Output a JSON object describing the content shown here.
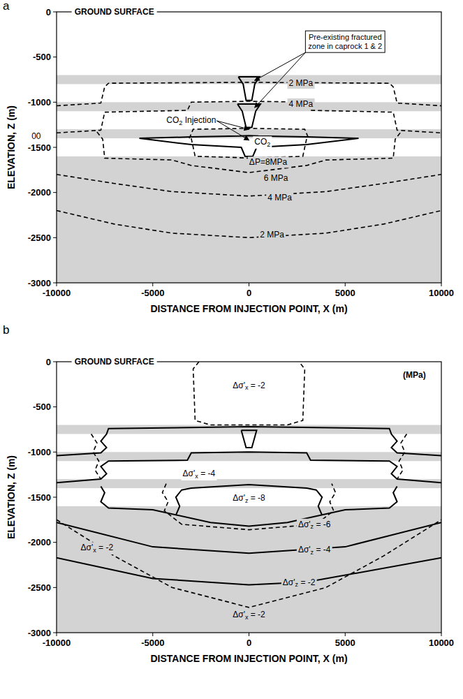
{
  "chart_data": [
    {
      "type": "contour",
      "panel": "a",
      "xlabel": "DISTANCE FROM INJECTION POINT, X (m)",
      "ylabel": "ELEVATION, Z (m)",
      "xlim": [
        -10000,
        10000
      ],
      "ylim": [
        -3000,
        0
      ],
      "xticks": [
        -10000,
        -5000,
        0,
        5000,
        10000
      ],
      "yticks": [
        -3000,
        -2500,
        -2000,
        -1500,
        -1000,
        -500,
        0
      ],
      "layers": [
        {
          "top": -700,
          "bottom": -800
        },
        {
          "top": -1000,
          "bottom": -1100
        },
        {
          "top": -1300,
          "bottom": -1400
        },
        {
          "top": -1600,
          "bottom": -3000
        }
      ],
      "contours": [
        {
          "line_style": "dashed",
          "x": [
            -10000,
            -7700,
            -7500,
            -7300,
            0,
            7300,
            7500,
            7700,
            10000
          ],
          "y": [
            -1040,
            -1010,
            -830,
            -790,
            -780,
            -790,
            -830,
            -1010,
            -1040
          ]
        },
        {
          "line_style": "dashed",
          "x": [
            -10000,
            -7700,
            -7500,
            -3200,
            -3000,
            0,
            3000,
            3200,
            7500,
            7700,
            10000
          ],
          "y": [
            -1340,
            -1310,
            -1110,
            -1090,
            -1000,
            -990,
            -1000,
            -1090,
            -1110,
            -1310,
            -1340
          ]
        },
        {
          "line_style": "dashed",
          "x": [
            -7900,
            -7600,
            -7500,
            -4000,
            -3000,
            0,
            3000,
            4000,
            7500,
            7600,
            7900
          ],
          "y": [
            -1330,
            -1410,
            -1620,
            -1640,
            -1700,
            -1780,
            -1700,
            -1640,
            -1620,
            -1410,
            -1330
          ]
        },
        {
          "line_style": "dashed",
          "x": [
            -3100,
            -2900,
            0,
            2900,
            3100
          ],
          "y": [
            -1400,
            -1300,
            -1290,
            -1300,
            -1400
          ]
        },
        {
          "line_style": "dashed",
          "x": [
            -3000,
            -2800,
            -1000,
            0,
            1000,
            2800,
            3000
          ],
          "y": [
            -1400,
            -1600,
            -1610,
            -1620,
            -1610,
            -1600,
            -1400
          ]
        },
        {
          "line_style": "dashed",
          "x": [
            -10000,
            -7000,
            -4000,
            0,
            4000,
            7000,
            10000
          ],
          "y": [
            -1800,
            -1900,
            -1990,
            -2040,
            -1990,
            -1900,
            -1800
          ]
        },
        {
          "line_style": "dashed",
          "x": [
            -10000,
            -7000,
            -4000,
            0,
            4000,
            7000,
            10000
          ],
          "y": [
            -2200,
            -2350,
            -2450,
            -2500,
            -2450,
            -2350,
            -2200
          ]
        },
        {
          "line_style": "solid",
          "x": [
            -5700,
            -3000,
            -500,
            0,
            500,
            3000,
            5700,
            3000,
            400,
            200,
            -200,
            -400,
            -3000,
            -5700
          ],
          "y": [
            -1400,
            -1385,
            -1375,
            -1370,
            -1375,
            -1385,
            -1400,
            -1470,
            -1500,
            -1600,
            -1600,
            -1500,
            -1470,
            -1400
          ]
        },
        {
          "line_style": "solid",
          "x": [
            -550,
            550,
            300,
            150,
            -150,
            -300,
            -550
          ],
          "y": [
            -720,
            -720,
            -800,
            -980,
            -980,
            -800,
            -720
          ]
        },
        {
          "line_style": "solid",
          "x": [
            -600,
            600,
            350,
            150,
            -150,
            -350,
            -600
          ],
          "y": [
            -1020,
            -1020,
            -1100,
            -1280,
            -1280,
            -1100,
            -1020
          ]
        }
      ],
      "annotations": [
        {
          "text": "2 MPa",
          "x": 2700,
          "y": -790
        },
        {
          "text": "4 MPa",
          "x": 2700,
          "y": -1020
        },
        {
          "text": "ΔP=8MPa",
          "x": 1000,
          "y": -1665
        },
        {
          "text": "6 MPa",
          "x": 1400,
          "y": -1840
        },
        {
          "text": "4 MPa",
          "x": 1600,
          "y": -2060
        },
        {
          "text": "2 MPa",
          "x": 1200,
          "y": -2470
        },
        {
          "text": "CO2",
          "x": 700,
          "y": -1440
        },
        {
          "text": "00",
          "x": -11300,
          "y": -1380
        }
      ],
      "ground_surface": {
        "text": "GROUND SURFACE",
        "x": -7000
      },
      "injection_label": {
        "text": "CO2 Injection",
        "x": -3000,
        "y": -1200,
        "targets": [
          [
            0,
            -1300
          ],
          [
            0,
            -1420
          ]
        ]
      },
      "fracture_note": {
        "lines": [
          "Pre-existing fractured",
          "zone in caprock 1 & 2"
        ],
        "x": 5000,
        "y": -330,
        "targets": [
          [
            300,
            -760
          ],
          [
            300,
            -1060
          ]
        ]
      }
    },
    {
      "type": "contour",
      "panel": "b",
      "xlabel": "DISTANCE FROM INJECTION POINT, X (m)",
      "ylabel": "ELEVATION, Z (m)",
      "xlim": [
        -10000,
        10000
      ],
      "ylim": [
        -3000,
        0
      ],
      "xticks": [
        -10000,
        -5000,
        0,
        5000,
        10000
      ],
      "yticks": [
        -3000,
        -2500,
        -2000,
        -1500,
        -1000,
        -500,
        0
      ],
      "layers": [
        {
          "top": -700,
          "bottom": -800
        },
        {
          "top": -1000,
          "bottom": -1100
        },
        {
          "top": -1300,
          "bottom": -1400
        },
        {
          "top": -1600,
          "bottom": -3000
        }
      ],
      "contours": [
        {
          "line_style": "solid",
          "x": [
            -10000,
            -7700,
            -7400,
            -7700,
            -7400,
            -7300,
            0,
            7300,
            7400,
            7700,
            7400,
            7700,
            10000
          ],
          "y": [
            -1040,
            -1010,
            -950,
            -880,
            -800,
            -740,
            -720,
            -740,
            -800,
            -880,
            -950,
            -1010,
            -1040
          ]
        },
        {
          "line_style": "solid",
          "x": [
            -10000,
            -7700,
            -7400,
            -7700,
            -7300,
            -3200,
            -3000,
            0,
            3000,
            3200,
            7300,
            7700,
            7400,
            7700,
            10000
          ],
          "y": [
            -1340,
            -1300,
            -1240,
            -1160,
            -1100,
            -1090,
            -1010,
            -1000,
            -1010,
            -1090,
            -1100,
            -1160,
            -1240,
            -1300,
            -1340
          ]
        },
        {
          "line_style": "solid",
          "x": [
            -3800,
            -3600,
            -3800,
            -3500,
            -3000,
            0,
            3000,
            3500,
            3800,
            3600,
            3800
          ],
          "y": [
            -1700,
            -1600,
            -1500,
            -1420,
            -1400,
            -1360,
            -1400,
            -1420,
            -1500,
            -1600,
            -1700
          ]
        },
        {
          "line_style": "solid",
          "x": [
            -7700,
            -7500,
            -7700,
            -7300,
            -5000,
            -2000,
            0,
            2000,
            5000,
            7300,
            7700,
            7500,
            7700
          ],
          "y": [
            -1380,
            -1450,
            -1550,
            -1620,
            -1640,
            -1780,
            -1820,
            -1780,
            -1640,
            -1620,
            -1550,
            -1450,
            -1380
          ]
        },
        {
          "line_style": "solid",
          "x": [
            -10000,
            -5000,
            0,
            5000,
            10000
          ],
          "y": [
            -1780,
            -2050,
            -2120,
            -2050,
            -1780
          ]
        },
        {
          "line_style": "solid",
          "x": [
            -10000,
            -5000,
            0,
            3000,
            10000
          ],
          "y": [
            -2170,
            -2400,
            -2470,
            -2440,
            -2170
          ]
        },
        {
          "line_style": "solid",
          "x": [
            -400,
            400,
            150,
            -150,
            -400
          ],
          "y": [
            -760,
            -760,
            -950,
            -950,
            -760
          ]
        },
        {
          "line_style": "dashed",
          "x": [
            -2600,
            -2900,
            -2800,
            -2000,
            2000,
            2800,
            2900,
            2600
          ],
          "y": [
            0,
            -80,
            -650,
            -700,
            -700,
            -650,
            -80,
            0
          ]
        },
        {
          "line_style": "dashed",
          "x": [
            -4300,
            -4500,
            -4200,
            -4400,
            -3500,
            0,
            3500,
            4400,
            4200,
            4500,
            4300
          ],
          "y": [
            -1350,
            -1450,
            -1550,
            -1650,
            -1800,
            -1860,
            -1800,
            -1650,
            -1550,
            -1450,
            -1350
          ]
        },
        {
          "line_style": "dashed",
          "x": [
            -10000,
            -7000,
            -4000,
            0,
            4000,
            7000,
            10000
          ],
          "y": [
            -1750,
            -2150,
            -2500,
            -2720,
            -2500,
            -2150,
            -1750
          ]
        },
        {
          "line_style": "dashed",
          "x": [
            -8200,
            -7900,
            -8100,
            -7800,
            -8000,
            -7700
          ],
          "y": [
            -800,
            -900,
            -1000,
            -1100,
            -1200,
            -1300
          ]
        },
        {
          "line_style": "dashed",
          "x": [
            8200,
            7900,
            8100,
            7800,
            8000,
            7700
          ],
          "y": [
            -800,
            -900,
            -1000,
            -1100,
            -1200,
            -1300
          ]
        }
      ],
      "annotations": [
        {
          "text": "Δσ'x = -2",
          "x": 0,
          "y": -260
        },
        {
          "text": "Δσ'x = -4",
          "x": -2600,
          "y": -1240
        },
        {
          "text": "Δσ'z = -8",
          "x": 0,
          "y": -1510
        },
        {
          "text": "Δσ'z = -6",
          "x": 3400,
          "y": -1800
        },
        {
          "text": "Δσ'z = -4",
          "x": 3400,
          "y": -2080
        },
        {
          "text": "Δσ'z = -2",
          "x": 2600,
          "y": -2440
        },
        {
          "text": "Δσ'x = -2",
          "x": -7900,
          "y": -2060
        },
        {
          "text": "Δσ'x = -2",
          "x": 0,
          "y": -2800
        },
        {
          "text": "(MPa)",
          "x": 8600,
          "y": -150
        }
      ],
      "ground_surface": {
        "text": "GROUND SURFACE",
        "x": -7000
      }
    }
  ]
}
